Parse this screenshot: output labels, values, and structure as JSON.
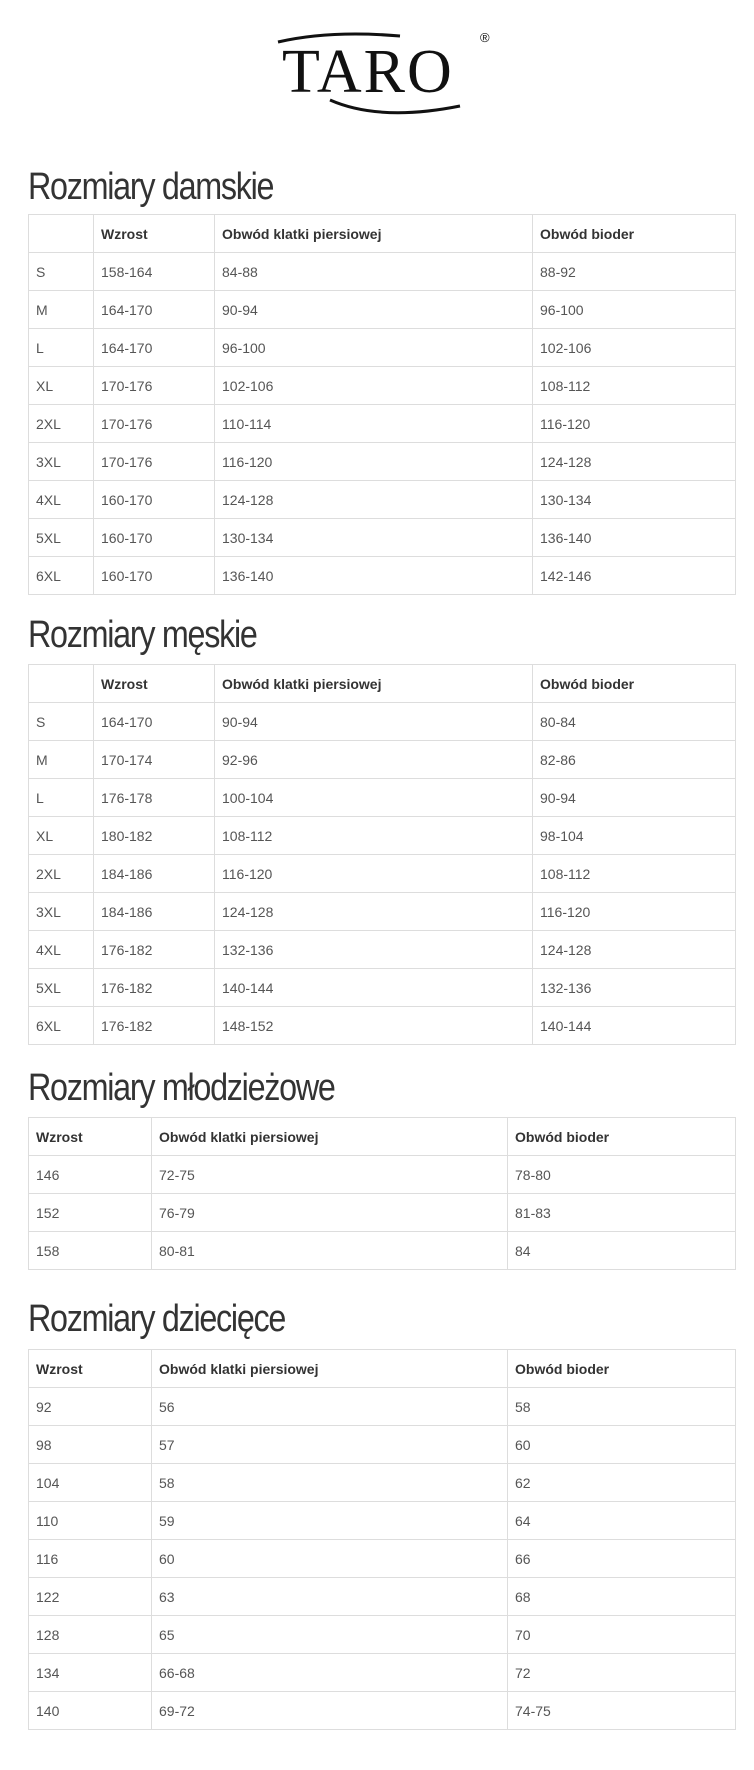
{
  "logo": {
    "text": "TARO",
    "mark": "®"
  },
  "sections": [
    {
      "title": "Rozmiary damskie",
      "header": [
        "Wzrost",
        "Obwód klatki piersiowej",
        "Obwód bioder"
      ],
      "rows": [
        [
          "S",
          "158-164",
          "84-88",
          "88-92"
        ],
        [
          "M",
          "164-170",
          "90-94",
          "96-100"
        ],
        [
          "L",
          "164-170",
          "96-100",
          "102-106"
        ],
        [
          "XL",
          "170-176",
          "102-106",
          "108-112"
        ],
        [
          "2XL",
          "170-176",
          "110-114",
          "116-120"
        ],
        [
          "3XL",
          "170-176",
          "116-120",
          "124-128"
        ],
        [
          "4XL",
          "160-170",
          "124-128",
          "130-134"
        ],
        [
          "5XL",
          "160-170",
          "130-134",
          "136-140"
        ],
        [
          "6XL",
          "160-170",
          "136-140",
          "142-146"
        ]
      ]
    },
    {
      "title": "Rozmiary męskie",
      "header": [
        "Wzrost",
        "Obwód klatki piersiowej",
        "Obwód bioder"
      ],
      "rows": [
        [
          "S",
          "164-170",
          "90-94",
          "80-84"
        ],
        [
          "M",
          "170-174",
          "92-96",
          "82-86"
        ],
        [
          "L",
          "176-178",
          "100-104",
          "90-94"
        ],
        [
          "XL",
          "180-182",
          "108-112",
          "98-104"
        ],
        [
          "2XL",
          "184-186",
          "116-120",
          "108-112"
        ],
        [
          "3XL",
          "184-186",
          "124-128",
          "116-120"
        ],
        [
          "4XL",
          "176-182",
          "132-136",
          "124-128"
        ],
        [
          "5XL",
          "176-182",
          "140-144",
          "132-136"
        ],
        [
          "6XL",
          "176-182",
          "148-152",
          "140-144"
        ]
      ]
    },
    {
      "title": "Rozmiary młodzieżowe",
      "header": [
        "Wzrost",
        "Obwód klatki piersiowej",
        "Obwód bioder"
      ],
      "rows": [
        [
          "146",
          "72-75",
          "78-80"
        ],
        [
          "152",
          "76-79",
          "81-83"
        ],
        [
          "158",
          "80-81",
          "84"
        ]
      ]
    },
    {
      "title": "Rozmiary dziecięce",
      "header": [
        "Wzrost",
        "Obwód klatki piersiowej",
        "Obwód bioder"
      ],
      "rows": [
        [
          "92",
          "56",
          "58"
        ],
        [
          "98",
          "57",
          "60"
        ],
        [
          "104",
          "58",
          "62"
        ],
        [
          "110",
          "59",
          "64"
        ],
        [
          "116",
          "60",
          "66"
        ],
        [
          "122",
          "63",
          "68"
        ],
        [
          "128",
          "65",
          "70"
        ],
        [
          "134",
          "66-68",
          "72"
        ],
        [
          "140",
          "69-72",
          "74-75"
        ]
      ]
    }
  ]
}
